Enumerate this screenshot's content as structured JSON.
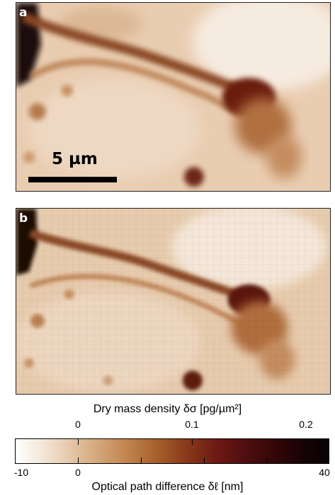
{
  "panels": [
    {
      "label": "a",
      "scalebar_label": "5 µm"
    },
    {
      "label": "b"
    }
  ],
  "colorbar": {
    "top_axis_title": "Dry mass density δσ  [pg/µm²]",
    "top_ticks": [
      "0",
      "0.1",
      "0.2"
    ],
    "bottom_axis_title": "Optical path difference  δℓ  [nm]",
    "bottom_ticks": [
      "-10",
      "0",
      "40"
    ],
    "colors": [
      "#ffffff",
      "#e7cdb0",
      "#c48a56",
      "#8a3b1a",
      "#4e0d0f",
      "#0a0204"
    ]
  }
}
